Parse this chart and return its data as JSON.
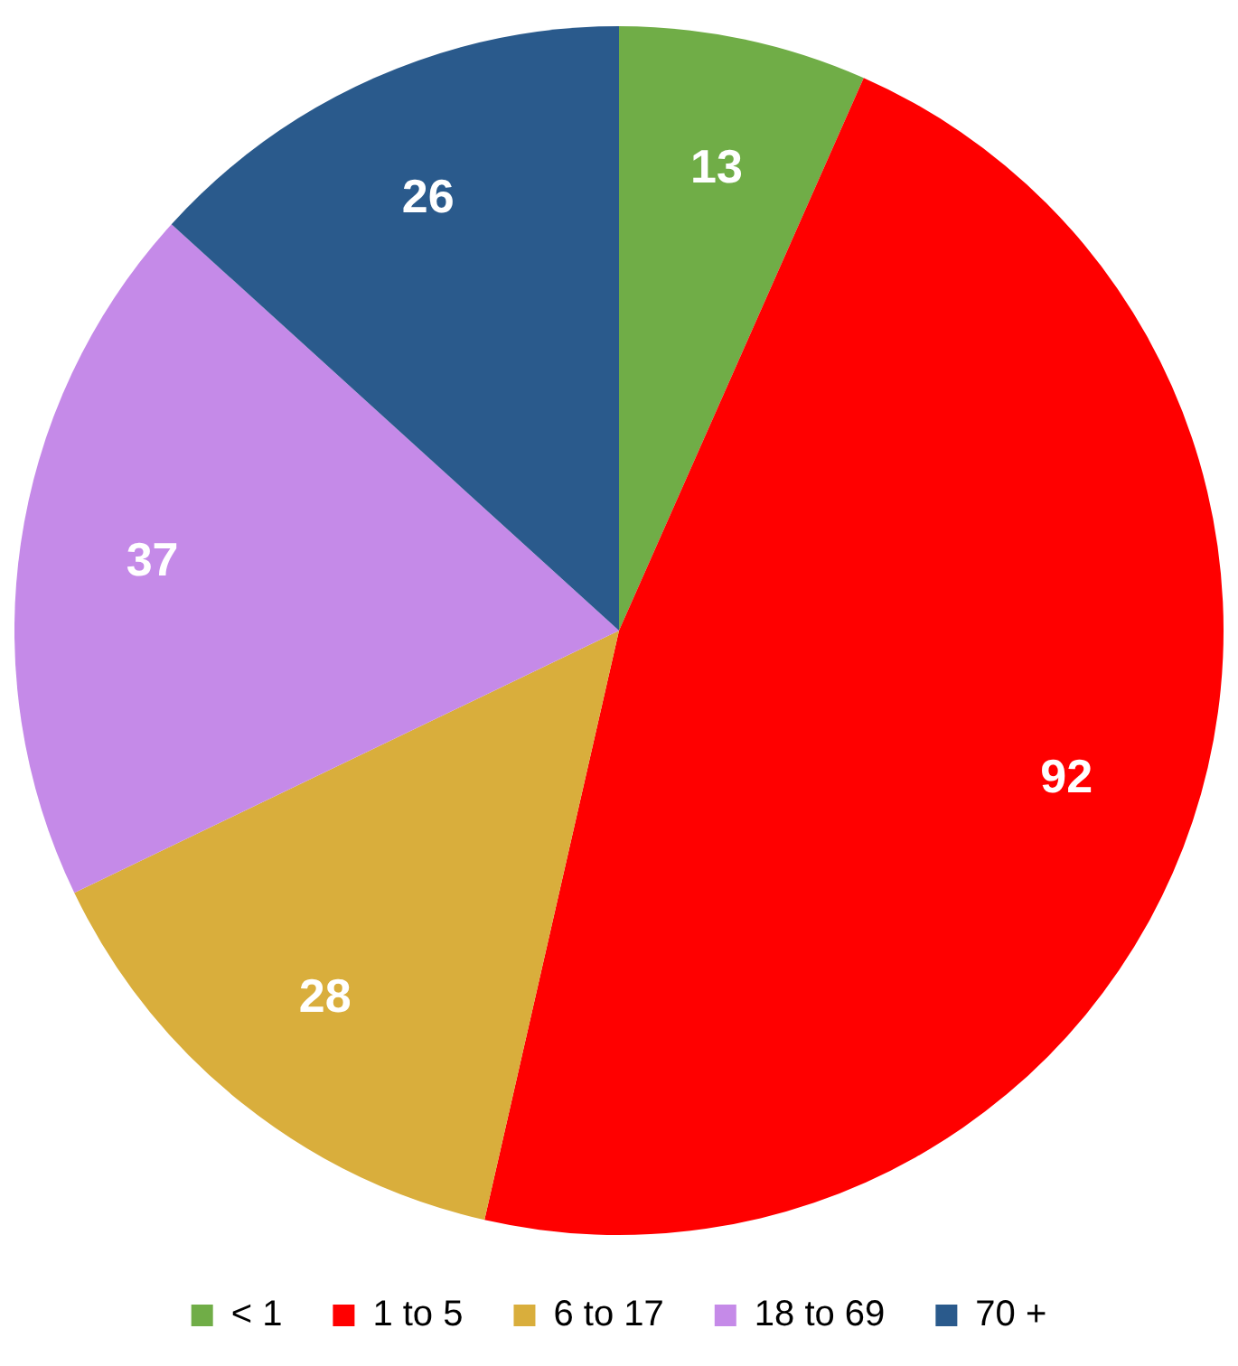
{
  "chart_data": {
    "type": "pie",
    "categories": [
      "< 1",
      "1 to 5",
      "6 to 17",
      "18 to 69",
      "70 +"
    ],
    "values": [
      13,
      92,
      28,
      37,
      26
    ],
    "colors": [
      "#70ad47",
      "#ff0000",
      "#d9ae3c",
      "#c58ae8",
      "#2a5a8c"
    ],
    "data_labels": true,
    "legend": "bottom"
  }
}
